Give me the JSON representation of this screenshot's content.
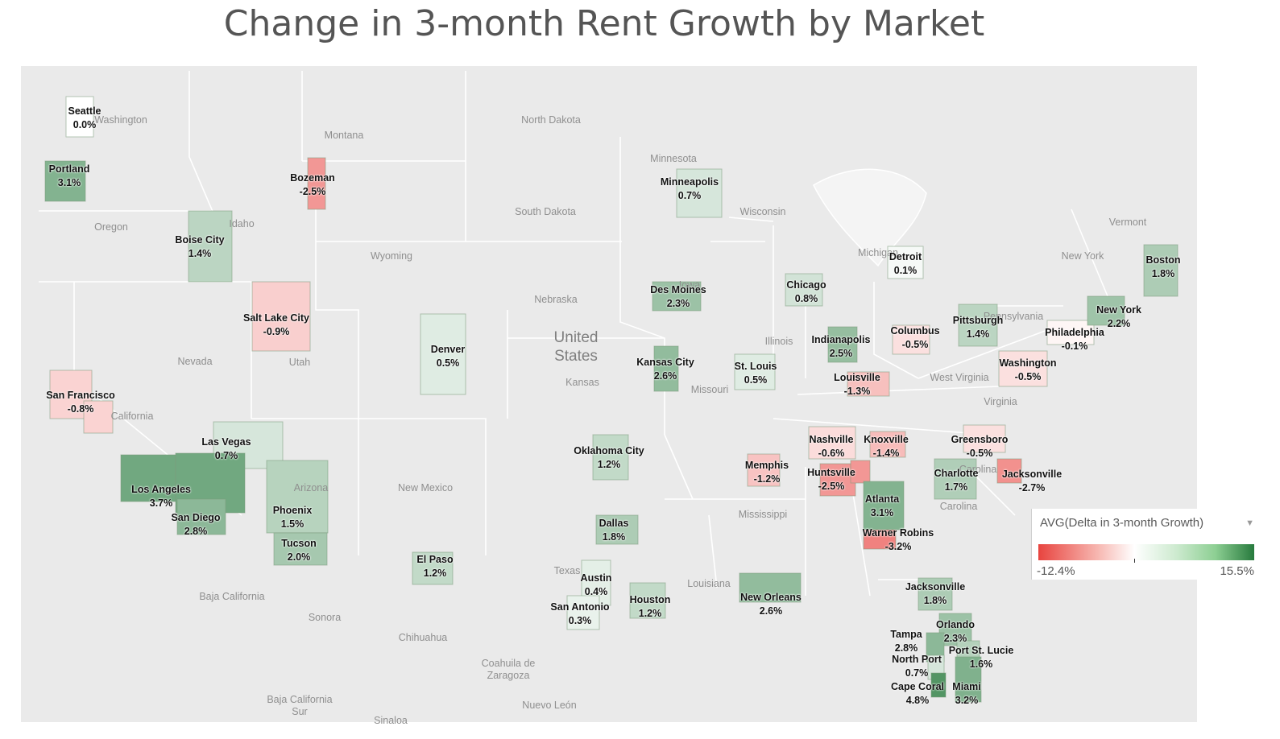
{
  "title": "Change in 3-month Rent Growth by Market",
  "legend": {
    "title": "AVG(Delta in 3-month Growth)",
    "min_label": "-12.4%",
    "max_label": "15.5%",
    "min": -12.4,
    "max": 15.5,
    "dropdown_icon": "chevron-down-icon"
  },
  "colors": {
    "negative": "#e8443f",
    "neutral": "#ffffff",
    "positive": "#277a3d",
    "land": "#eaeaea",
    "border": "#ffffff"
  },
  "markets": [
    {
      "name": "Seattle",
      "value": "0.0%",
      "delta": 0.0
    },
    {
      "name": "Portland",
      "value": "3.1%",
      "delta": 3.1
    },
    {
      "name": "Bozeman",
      "value": "-2.5%",
      "delta": -2.5
    },
    {
      "name": "Boise City",
      "value": "1.4%",
      "delta": 1.4
    },
    {
      "name": "Salt Lake City",
      "value": "-0.9%",
      "delta": -0.9
    },
    {
      "name": "Denver",
      "value": "0.5%",
      "delta": 0.5
    },
    {
      "name": "San Francisco",
      "value": "-0.8%",
      "delta": -0.8
    },
    {
      "name": "Las Vegas",
      "value": "0.7%",
      "delta": 0.7
    },
    {
      "name": "Los Angeles",
      "value": "3.7%",
      "delta": 3.7
    },
    {
      "name": "San Diego",
      "value": "2.8%",
      "delta": 2.8
    },
    {
      "name": "Phoenix",
      "value": "1.5%",
      "delta": 1.5
    },
    {
      "name": "Tucson",
      "value": "2.0%",
      "delta": 2.0
    },
    {
      "name": "El Paso",
      "value": "1.2%",
      "delta": 1.2
    },
    {
      "name": "Minneapolis",
      "value": "0.7%",
      "delta": 0.7
    },
    {
      "name": "Des Moines",
      "value": "2.3%",
      "delta": 2.3
    },
    {
      "name": "Kansas City",
      "value": "2.6%",
      "delta": 2.6
    },
    {
      "name": "Oklahoma City",
      "value": "1.2%",
      "delta": 1.2
    },
    {
      "name": "Dallas",
      "value": "1.8%",
      "delta": 1.8
    },
    {
      "name": "Austin",
      "value": "0.4%",
      "delta": 0.4
    },
    {
      "name": "San Antonio",
      "value": "0.3%",
      "delta": 0.3
    },
    {
      "name": "Houston",
      "value": "1.2%",
      "delta": 1.2
    },
    {
      "name": "Chicago",
      "value": "0.8%",
      "delta": 0.8
    },
    {
      "name": "St. Louis",
      "value": "0.5%",
      "delta": 0.5
    },
    {
      "name": "Memphis",
      "value": "-1.2%",
      "delta": -1.2
    },
    {
      "name": "New Orleans",
      "value": "2.6%",
      "delta": 2.6
    },
    {
      "name": "Detroit",
      "value": "0.1%",
      "delta": 0.1
    },
    {
      "name": "Indianapolis",
      "value": "2.5%",
      "delta": 2.5
    },
    {
      "name": "Columbus",
      "value": "-0.5%",
      "delta": -0.5
    },
    {
      "name": "Louisville",
      "value": "-1.3%",
      "delta": -1.3
    },
    {
      "name": "Nashville",
      "value": "-0.6%",
      "delta": -0.6
    },
    {
      "name": "Knoxville",
      "value": "-1.4%",
      "delta": -1.4
    },
    {
      "name": "Huntsville",
      "value": "-2.5%",
      "delta": -2.5
    },
    {
      "name": "Atlanta",
      "value": "3.1%",
      "delta": 3.1
    },
    {
      "name": "Warner Robins",
      "value": "-3.2%",
      "delta": -3.2
    },
    {
      "name": "Pittsburgh",
      "value": "1.4%",
      "delta": 1.4
    },
    {
      "name": "Washington",
      "value": "-0.5%",
      "delta": -0.5
    },
    {
      "name": "Philadelphia",
      "value": "-0.1%",
      "delta": -0.1
    },
    {
      "name": "New York",
      "value": "2.2%",
      "delta": 2.2
    },
    {
      "name": "Boston",
      "value": "1.8%",
      "delta": 1.8
    },
    {
      "name": "Greensboro",
      "value": "-0.5%",
      "delta": -0.5
    },
    {
      "name": "Charlotte",
      "value": "1.7%",
      "delta": 1.7
    },
    {
      "name": "Jacksonville",
      "value": "-2.7%",
      "delta": -2.7
    },
    {
      "name": "Jacksonville",
      "value": "1.8%",
      "delta": 1.8
    },
    {
      "name": "Orlando",
      "value": "2.3%",
      "delta": 2.3
    },
    {
      "name": "Tampa",
      "value": "2.8%",
      "delta": 2.8
    },
    {
      "name": "North Port",
      "value": "0.7%",
      "delta": 0.7
    },
    {
      "name": "Port St. Lucie",
      "value": "1.6%",
      "delta": 1.6
    },
    {
      "name": "Cape Coral",
      "value": "4.8%",
      "delta": 4.8
    },
    {
      "name": "Miami",
      "value": "3.2%",
      "delta": 3.2
    }
  ],
  "geo_labels": [
    {
      "text": "Washington"
    },
    {
      "text": "Montana"
    },
    {
      "text": "North Dakota"
    },
    {
      "text": "Minnesota"
    },
    {
      "text": "South Dakota"
    },
    {
      "text": "Wisconsin"
    },
    {
      "text": "Oregon"
    },
    {
      "text": "Idaho"
    },
    {
      "text": "Wyoming"
    },
    {
      "text": "Michigan"
    },
    {
      "text": "Iowa"
    },
    {
      "text": "Nebraska"
    },
    {
      "text": "United States"
    },
    {
      "text": "Nevada"
    },
    {
      "text": "Utah"
    },
    {
      "text": "Illinois"
    },
    {
      "text": "Kansas"
    },
    {
      "text": "Missouri"
    },
    {
      "text": "California"
    },
    {
      "text": "Arizona"
    },
    {
      "text": "New Mexico"
    },
    {
      "text": "Mississippi"
    },
    {
      "text": "Texas"
    },
    {
      "text": "Louisiana"
    },
    {
      "text": "Baja California"
    },
    {
      "text": "Sonora"
    },
    {
      "text": "Chihuahua"
    },
    {
      "text": "Coahuila de Zaragoza"
    },
    {
      "text": "Baja California Sur"
    },
    {
      "text": "Nuevo León"
    },
    {
      "text": "Sinaloa"
    },
    {
      "text": "New York"
    },
    {
      "text": "Pennsylvania"
    },
    {
      "text": "Vermont"
    },
    {
      "text": "West Virginia"
    },
    {
      "text": "Virginia"
    },
    {
      "text": "Carolina"
    },
    {
      "text": "Carolina"
    }
  ]
}
